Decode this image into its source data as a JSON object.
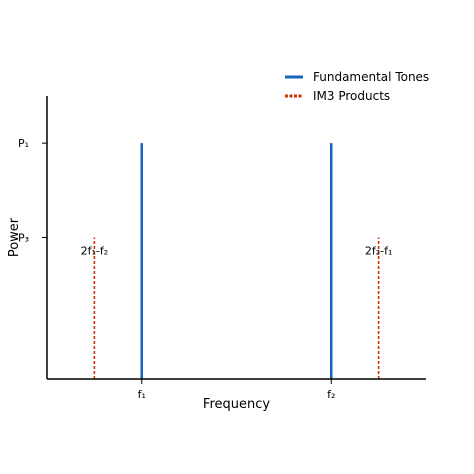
{
  "chart_data": {
    "type": "stem",
    "title": "",
    "xlabel": "Frequency",
    "ylabel": "Power",
    "xlim": [
      0,
      8
    ],
    "ylim": [
      0,
      6
    ],
    "x_ticks": [
      {
        "value": 2,
        "label": "f₁"
      },
      {
        "value": 6,
        "label": "f₂"
      }
    ],
    "y_ticks": [
      {
        "value": 5,
        "label": "P₁"
      },
      {
        "value": 3,
        "label": "P₃"
      }
    ],
    "grid": false,
    "legend_position": "top-right",
    "series": [
      {
        "name": "Fundamental Tones",
        "color": "#1565c0",
        "style": "solid",
        "points": [
          {
            "x": 2,
            "y": 5,
            "label": ""
          },
          {
            "x": 6,
            "y": 5,
            "label": ""
          }
        ]
      },
      {
        "name": "IM3 Products",
        "color": "#cc3300",
        "style": "dashed",
        "points": [
          {
            "x": 1,
            "y": 3,
            "label": "2f₁-f₂"
          },
          {
            "x": 7,
            "y": 3,
            "label": "2f₂-f₁"
          }
        ]
      }
    ]
  }
}
